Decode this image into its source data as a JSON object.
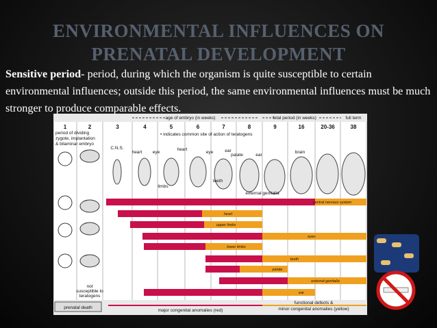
{
  "title": {
    "line1": "ENVIRONMENTAL INFLUENCES ON",
    "line2": "PRENATAL DEVELOPMENT"
  },
  "body": {
    "term": "Sensitive period",
    "definition": "- period, during which the organism is quite susceptible to certain environmental influences; outside this period, the same environmental influences must be much stronger to produce comparable effects."
  },
  "figure": {
    "embryo_period": "age of embryo (in weeks)",
    "fetal_period": "fetal period (in weeks)",
    "full_term": "full term",
    "columns": [
      "1",
      "2",
      "3",
      "4",
      "5",
      "6",
      "7",
      "8",
      "9",
      "16",
      "20-36",
      "38"
    ],
    "first_column_note": [
      "period of dividing",
      "zygote, implantation",
      "& bilaminar embryo"
    ],
    "legend_note": "• indicates common site of action of teratogens",
    "annotations": [
      "C.N.S.",
      "heart",
      "eye",
      "heart",
      "limbs",
      "eye",
      "ear",
      "teeth",
      "palate",
      "ear",
      "brain",
      "external genitalia"
    ],
    "rows": [
      "central nervous system",
      "heart",
      "upper limbs",
      "eyes",
      "lower limbs",
      "teeth",
      "palate",
      "external genitalia",
      "ear"
    ],
    "not_susceptible": [
      "not",
      "susceptible to",
      "teratogens"
    ],
    "prenatal_death": "prenatal death",
    "major": "major congenital anomalies (red)",
    "minor": [
      "functional defects &",
      "minor congenital anomalies (yellow)"
    ]
  }
}
